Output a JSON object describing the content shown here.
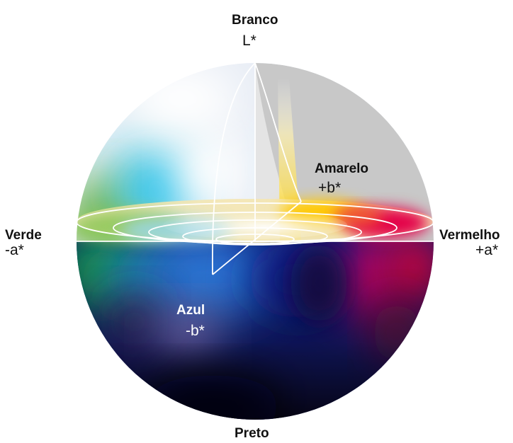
{
  "diagram": {
    "axis_top": {
      "name": "Branco",
      "symbol": "L*"
    },
    "axis_bottom": {
      "name": "Preto"
    },
    "axis_left": {
      "name": "Verde",
      "symbol": "-a*"
    },
    "axis_right": {
      "name": "Vermelho",
      "symbol": "+a*"
    },
    "axis_yellow": {
      "name": "Amarelo",
      "symbol": "+b*"
    },
    "axis_blue": {
      "name": "Azul",
      "symbol": "-b*"
    }
  },
  "colors": {
    "white": "#ffffff",
    "black": "#0c0714",
    "green": "#1fa04a",
    "red": "#e3003a",
    "yellow": "#ffd21a",
    "blue": "#1a48c8",
    "cyan": "#12b4ea",
    "magenta": "#c0006e",
    "cutaway_gray": "#c8c8c8"
  }
}
